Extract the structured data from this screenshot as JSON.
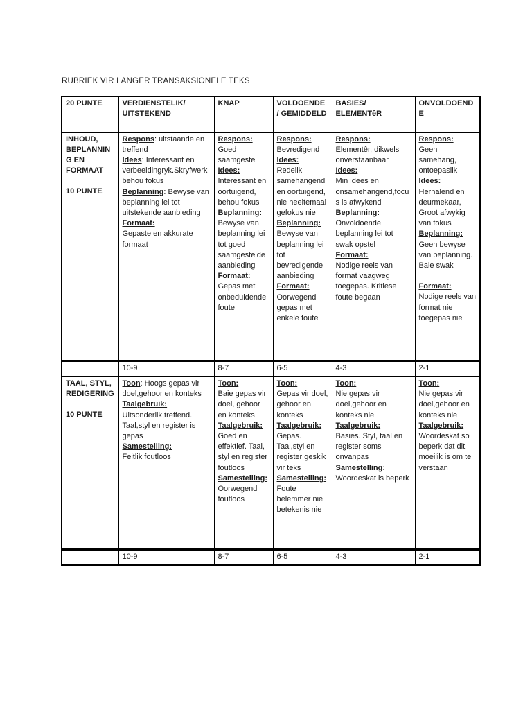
{
  "page": {
    "title": "RUBRIEK VIR LANGER TRANSAKSIONELE TEKS"
  },
  "colors": {
    "background": "#ffffff",
    "text": "#1c1c1c",
    "border": "#000000"
  },
  "table": {
    "header": [
      "20 PUNTE",
      "VERDIENSTELIK/ UITSTEKEND",
      "KNAP",
      "VOLDOENDE / GEMIDDELD",
      "BASIES/ ELEMENTêR",
      "ONVOLDOENDE"
    ],
    "criteria_rows": [
      {
        "name": "INHOUD, BEPLANNING EN FORMAAT",
        "points": "10 PUNTE",
        "cells": [
          [
            {
              "head": "Respons",
              "rest": ": uitstaande en treffend",
              "inline": true
            },
            {
              "head": "Idees",
              "rest": ": Interessant en verbeeldingryk.Skryfwerk behou fokus",
              "inline": true
            },
            {
              "head": "Beplanning",
              "rest": ": Bewyse van beplanning lei tot uitstekende aanbieding",
              "inline": true
            },
            {
              "head": "Formaat:",
              "rest": "Gepaste en akkurate formaat"
            }
          ],
          [
            {
              "head": "Respons:",
              "rest": "Goed saamgestel"
            },
            {
              "head": "Idees:",
              "rest": "Interessant en oortuigend, behou fokus"
            },
            {
              "head": "Beplanning:",
              "rest": "Bewyse van beplanning lei tot goed saamgestelde aanbieding"
            },
            {
              "head": "Formaat:",
              "rest": "Gepas met onbeduidende foute"
            }
          ],
          [
            {
              "head": "Respons:",
              "rest": "Bevredigend"
            },
            {
              "head": "Idees:",
              "rest": "Redelik samehangend en oortuigend, nie heeltemaal gefokus nie"
            },
            {
              "head": "Beplanning:",
              "rest": "Bewyse van beplanning lei tot bevredigende aanbieding"
            },
            {
              "head": "Formaat:",
              "rest": "Oorwegend gepas met enkele foute"
            }
          ],
          [
            {
              "head": "Respons:",
              "rest": "Elementêr, dikwels onverstaanbaar"
            },
            {
              "head": "Idees:",
              "rest": "Min idees en onsamehangend,focus is afwykend"
            },
            {
              "head": "Beplanning:",
              "rest": "Onvoldoende beplanning lei tot swak opstel"
            },
            {
              "head": "Formaat:",
              "rest": "Nodige reels van format vaagweg toegepas. Kritiese foute begaan"
            }
          ],
          [
            {
              "head": "Respons:",
              "rest": "Geen samehang, ontoepaslik"
            },
            {
              "head": "Idees:",
              "rest": "Herhalend en deurmekaar, Groot afwykig van fokus"
            },
            {
              "head": "Beplanning:",
              "rest": "Geen bewyse van beplanning. Baie swak"
            },
            {
              "head": "Formaat:",
              "rest": "Nodige reels van format nie toegepas nie",
              "gap": true
            }
          ]
        ],
        "marks": [
          "",
          "10-9",
          "8-7",
          "6-5",
          "4-3",
          "2-1"
        ]
      },
      {
        "name": "TAAL, STYL, REDIGERING",
        "points": "10 PUNTE",
        "cells": [
          [
            {
              "head": "Toon",
              "rest": ": Hoogs gepas vir doel,gehoor en konteks",
              "inline": true
            },
            {
              "head": "Taalgebruik:",
              "rest": "Uitsonderlik,treffend. Taal,styl en register is gepas"
            },
            {
              "head": "Samestelling:",
              "rest": "Feitlik foutloos"
            }
          ],
          [
            {
              "head": "Toon:",
              "rest": "Baie gepas vir doel, gehoor en konteks"
            },
            {
              "head": "Taalgebruik:",
              "rest": "Goed en effektief. Taal, styl en register foutloos"
            },
            {
              "head": "Samestelling:",
              "rest": "Oorwegend foutloos"
            }
          ],
          [
            {
              "head": "Toon:",
              "rest": "Gepas vir doel, gehoor en konteks"
            },
            {
              "head": "Taalgebruik:",
              "rest": "Gepas. Taal,styl en register geskik vir teks"
            },
            {
              "head": "Samestelling:",
              "rest": "Foute belemmer nie betekenis nie"
            }
          ],
          [
            {
              "head": "Toon:",
              "rest": "Nie gepas vir doel,gehoor en konteks nie"
            },
            {
              "head": "Taalgebruik:",
              "rest": "Basies. Styl, taal en register soms onvanpas"
            },
            {
              "head": "Samestelling:",
              "rest": "Woordeskat is beperk"
            }
          ],
          [
            {
              "head": "Toon:",
              "rest": "Nie gepas vir doel,gehoor en konteks nie"
            },
            {
              "head": "Taalgebruik:",
              "rest": "Woordeskat so beperk dat dit moeilik is om te verstaan"
            }
          ]
        ],
        "marks": [
          "",
          "10-9",
          "8-7",
          "6-5",
          "4-3",
          "2-1"
        ]
      }
    ]
  }
}
